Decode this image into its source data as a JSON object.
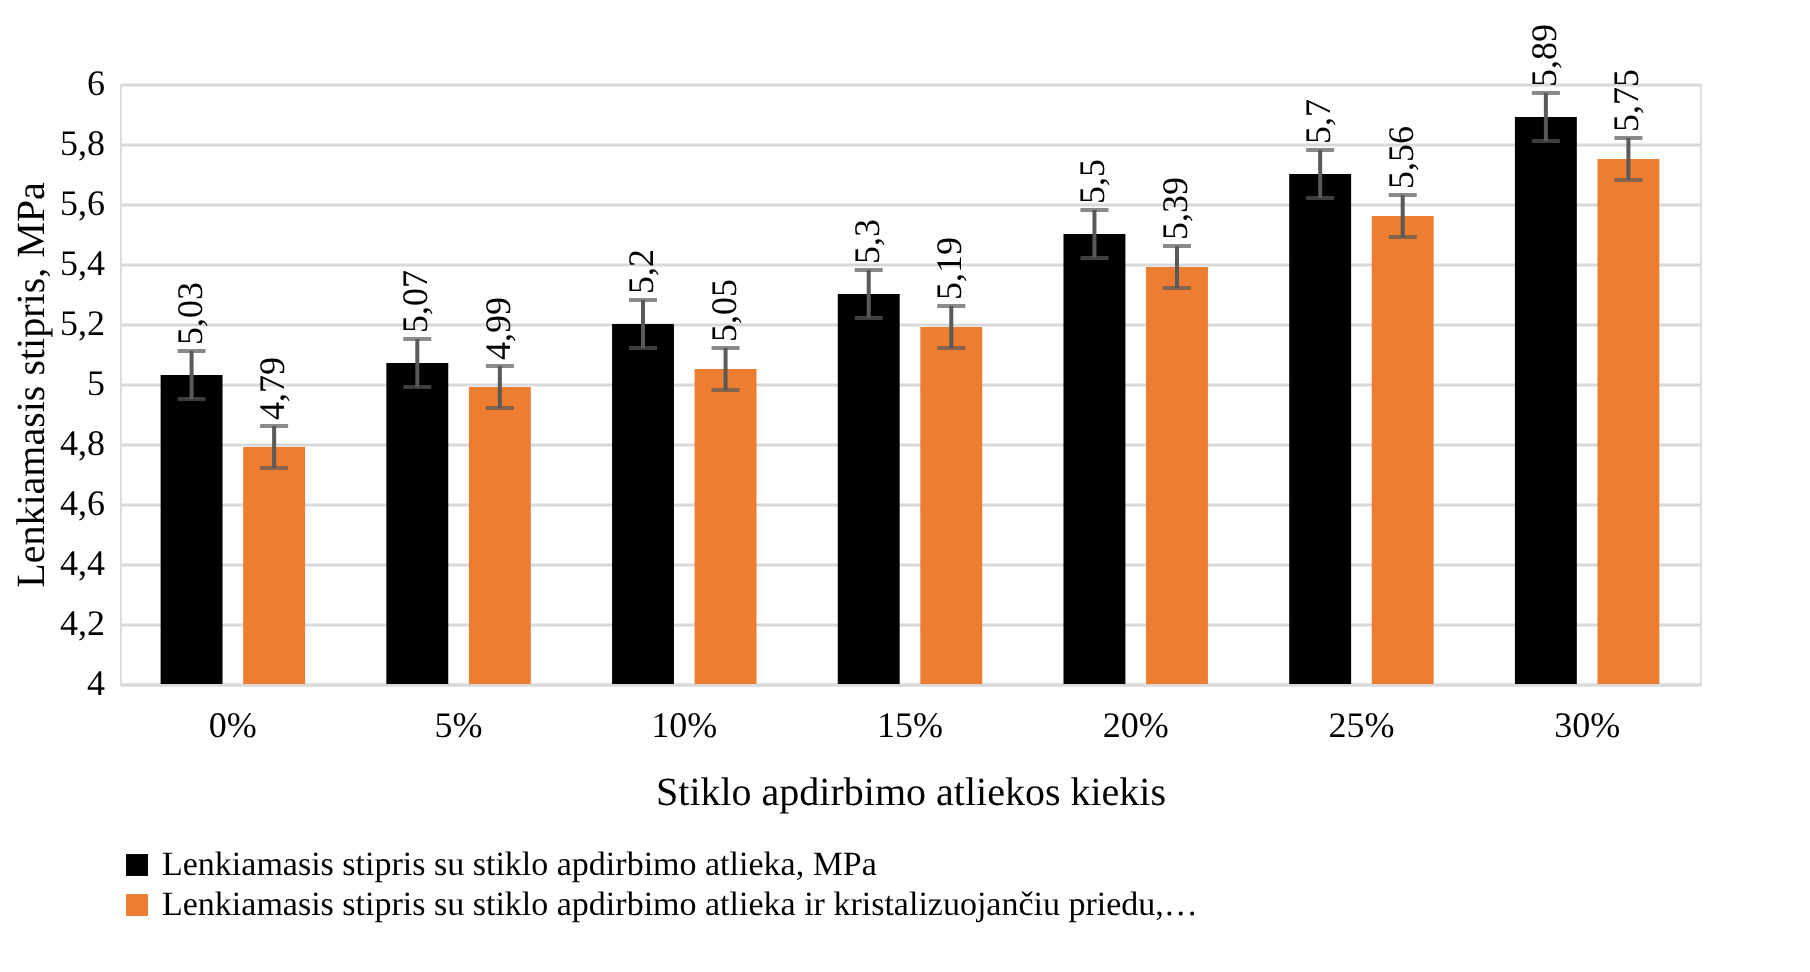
{
  "chart_data": {
    "type": "bar",
    "xlabel": "Stiklo apdirbimo atliekos kiekis",
    "ylabel": "Lenkiamasis stipris, MPa",
    "categories": [
      "0%",
      "5%",
      "10%",
      "15%",
      "20%",
      "25%",
      "30%"
    ],
    "series": [
      {
        "name": "Lenkiamasis stipris su stiklo apdirbimo atlieka, MPa",
        "color": "#000000",
        "values": [
          5.03,
          5.07,
          5.2,
          5.3,
          5.5,
          5.7,
          5.89
        ],
        "errors": [
          0.08,
          0.08,
          0.08,
          0.08,
          0.08,
          0.08,
          0.08
        ],
        "value_labels": [
          "5,03",
          "5,07",
          "5,2",
          "5,3",
          "5,5",
          "5,7",
          "5,89"
        ]
      },
      {
        "name": "Lenkiamasis stipris su stiklo apdirbimo atlieka ir kristalizuojančiu priedu,…",
        "color": "#ed7d31",
        "values": [
          4.79,
          4.99,
          5.05,
          5.19,
          5.39,
          5.56,
          5.75
        ],
        "errors": [
          0.07,
          0.07,
          0.07,
          0.07,
          0.07,
          0.07,
          0.07
        ],
        "value_labels": [
          "4,79",
          "4,99",
          "5,05",
          "5,19",
          "5,39",
          "5,56",
          "5,75"
        ]
      }
    ],
    "ylim": [
      4,
      6
    ],
    "yticks": [
      4,
      {
        "value": 4.2,
        "label": "4,2"
      },
      {
        "value": 4.4,
        "label": "4,4"
      },
      {
        "value": 4.6,
        "label": "4,6"
      },
      {
        "value": 4.8,
        "label": "4,8"
      },
      5,
      {
        "value": 5.2,
        "label": "5,2"
      },
      {
        "value": 5.4,
        "label": "5,4"
      },
      {
        "value": 5.6,
        "label": "5,6"
      },
      {
        "value": 5.8,
        "label": "5,8"
      },
      6
    ],
    "grid": "y",
    "legend": "bottom"
  }
}
